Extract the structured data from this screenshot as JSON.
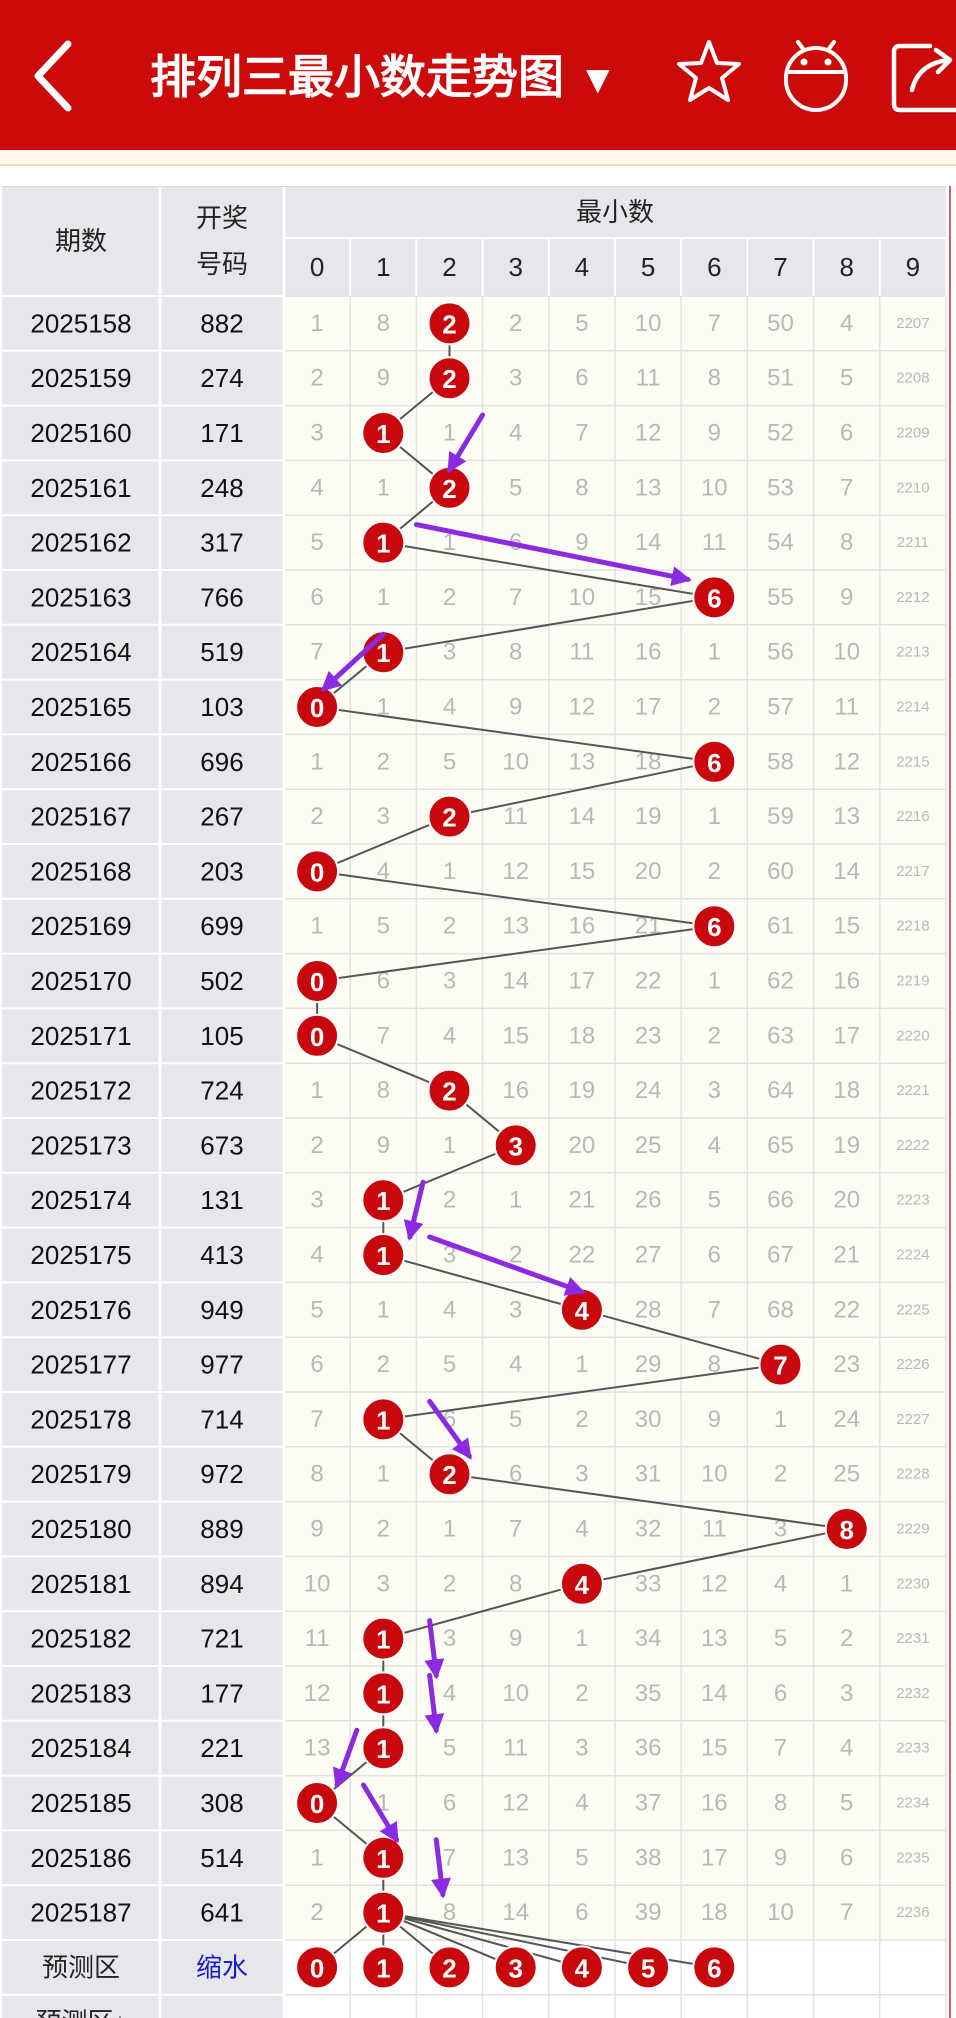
{
  "header": {
    "title": "排列三最小数走势图",
    "caret": "▼"
  },
  "table": {
    "col_period": "期数",
    "col_draw": [
      "开奖",
      "号码"
    ],
    "col_group": "最小数",
    "digits": [
      "0",
      "1",
      "2",
      "3",
      "4",
      "5",
      "6",
      "7",
      "8",
      "9"
    ]
  },
  "rows": [
    {
      "period": "2025158",
      "draw": "882",
      "min": 2,
      "cells": [
        "1",
        "8",
        "2",
        "2",
        "5",
        "10",
        "7",
        "50",
        "4",
        "2207"
      ]
    },
    {
      "period": "2025159",
      "draw": "274",
      "min": 2,
      "cells": [
        "2",
        "9",
        "2",
        "3",
        "6",
        "11",
        "8",
        "51",
        "5",
        "2208"
      ]
    },
    {
      "period": "2025160",
      "draw": "171",
      "min": 1,
      "cells": [
        "3",
        "1",
        "1",
        "4",
        "7",
        "12",
        "9",
        "52",
        "6",
        "2209"
      ]
    },
    {
      "period": "2025161",
      "draw": "248",
      "min": 2,
      "cells": [
        "4",
        "1",
        "2",
        "5",
        "8",
        "13",
        "10",
        "53",
        "7",
        "2210"
      ]
    },
    {
      "period": "2025162",
      "draw": "317",
      "min": 1,
      "cells": [
        "5",
        "1",
        "1",
        "6",
        "9",
        "14",
        "11",
        "54",
        "8",
        "2211"
      ]
    },
    {
      "period": "2025163",
      "draw": "766",
      "min": 6,
      "cells": [
        "6",
        "1",
        "2",
        "7",
        "10",
        "15",
        "6",
        "55",
        "9",
        "2212"
      ]
    },
    {
      "period": "2025164",
      "draw": "519",
      "min": 1,
      "cells": [
        "7",
        "1",
        "3",
        "8",
        "11",
        "16",
        "1",
        "56",
        "10",
        "2213"
      ]
    },
    {
      "period": "2025165",
      "draw": "103",
      "min": 0,
      "cells": [
        "0",
        "1",
        "4",
        "9",
        "12",
        "17",
        "2",
        "57",
        "11",
        "2214"
      ]
    },
    {
      "period": "2025166",
      "draw": "696",
      "min": 6,
      "cells": [
        "1",
        "2",
        "5",
        "10",
        "13",
        "18",
        "6",
        "58",
        "12",
        "2215"
      ]
    },
    {
      "period": "2025167",
      "draw": "267",
      "min": 2,
      "cells": [
        "2",
        "3",
        "2",
        "11",
        "14",
        "19",
        "1",
        "59",
        "13",
        "2216"
      ]
    },
    {
      "period": "2025168",
      "draw": "203",
      "min": 0,
      "cells": [
        "0",
        "4",
        "1",
        "12",
        "15",
        "20",
        "2",
        "60",
        "14",
        "2217"
      ]
    },
    {
      "period": "2025169",
      "draw": "699",
      "min": 6,
      "cells": [
        "1",
        "5",
        "2",
        "13",
        "16",
        "21",
        "6",
        "61",
        "15",
        "2218"
      ]
    },
    {
      "period": "2025170",
      "draw": "502",
      "min": 0,
      "cells": [
        "0",
        "6",
        "3",
        "14",
        "17",
        "22",
        "1",
        "62",
        "16",
        "2219"
      ]
    },
    {
      "period": "2025171",
      "draw": "105",
      "min": 0,
      "cells": [
        "0",
        "7",
        "4",
        "15",
        "18",
        "23",
        "2",
        "63",
        "17",
        "2220"
      ]
    },
    {
      "period": "2025172",
      "draw": "724",
      "min": 2,
      "cells": [
        "1",
        "8",
        "2",
        "16",
        "19",
        "24",
        "3",
        "64",
        "18",
        "2221"
      ]
    },
    {
      "period": "2025173",
      "draw": "673",
      "min": 3,
      "cells": [
        "2",
        "9",
        "1",
        "3",
        "20",
        "25",
        "4",
        "65",
        "19",
        "2222"
      ]
    },
    {
      "period": "2025174",
      "draw": "131",
      "min": 1,
      "cells": [
        "3",
        "1",
        "2",
        "1",
        "21",
        "26",
        "5",
        "66",
        "20",
        "2223"
      ]
    },
    {
      "period": "2025175",
      "draw": "413",
      "min": 1,
      "cells": [
        "4",
        "1",
        "3",
        "2",
        "22",
        "27",
        "6",
        "67",
        "21",
        "2224"
      ]
    },
    {
      "period": "2025176",
      "draw": "949",
      "min": 4,
      "cells": [
        "5",
        "1",
        "4",
        "3",
        "4",
        "28",
        "7",
        "68",
        "22",
        "2225"
      ]
    },
    {
      "period": "2025177",
      "draw": "977",
      "min": 7,
      "cells": [
        "6",
        "2",
        "5",
        "4",
        "1",
        "29",
        "8",
        "7",
        "23",
        "2226"
      ]
    },
    {
      "period": "2025178",
      "draw": "714",
      "min": 1,
      "cells": [
        "7",
        "1",
        "6",
        "5",
        "2",
        "30",
        "9",
        "1",
        "24",
        "2227"
      ]
    },
    {
      "period": "2025179",
      "draw": "972",
      "min": 2,
      "cells": [
        "8",
        "1",
        "2",
        "6",
        "3",
        "31",
        "10",
        "2",
        "25",
        "2228"
      ]
    },
    {
      "period": "2025180",
      "draw": "889",
      "min": 8,
      "cells": [
        "9",
        "2",
        "1",
        "7",
        "4",
        "32",
        "11",
        "3",
        "8",
        "2229"
      ]
    },
    {
      "period": "2025181",
      "draw": "894",
      "min": 4,
      "cells": [
        "10",
        "3",
        "2",
        "8",
        "4",
        "33",
        "12",
        "4",
        "1",
        "2230"
      ]
    },
    {
      "period": "2025182",
      "draw": "721",
      "min": 1,
      "cells": [
        "11",
        "1",
        "3",
        "9",
        "1",
        "34",
        "13",
        "5",
        "2",
        "2231"
      ]
    },
    {
      "period": "2025183",
      "draw": "177",
      "min": 1,
      "cells": [
        "12",
        "1",
        "4",
        "10",
        "2",
        "35",
        "14",
        "6",
        "3",
        "2232"
      ]
    },
    {
      "period": "2025184",
      "draw": "221",
      "min": 1,
      "cells": [
        "13",
        "1",
        "5",
        "11",
        "3",
        "36",
        "15",
        "7",
        "4",
        "2233"
      ]
    },
    {
      "period": "2025185",
      "draw": "308",
      "min": 0,
      "cells": [
        "0",
        "1",
        "6",
        "12",
        "4",
        "37",
        "16",
        "8",
        "5",
        "2234"
      ]
    },
    {
      "period": "2025186",
      "draw": "514",
      "min": 1,
      "cells": [
        "1",
        "1",
        "7",
        "13",
        "5",
        "38",
        "17",
        "9",
        "6",
        "2235"
      ]
    },
    {
      "period": "2025187",
      "draw": "641",
      "min": 1,
      "cells": [
        "2",
        "1",
        "8",
        "14",
        "6",
        "39",
        "18",
        "10",
        "7",
        "2236"
      ]
    }
  ],
  "predict": {
    "label": "预测区",
    "link": "缩水",
    "balls": [
      "0",
      "1",
      "2",
      "3",
      "4",
      "5",
      "6"
    ],
    "label2": "预测区↓"
  },
  "colors": {
    "header_red": "#cc0a0a",
    "ball_red": "#c8080c",
    "label_bg": "#e6e7ea",
    "cell_bg": "#fdfcf4",
    "arrow_purple": "#8a2be2"
  },
  "icons": [
    "back-arrow-icon",
    "star-icon",
    "robot-icon",
    "share-icon"
  ]
}
